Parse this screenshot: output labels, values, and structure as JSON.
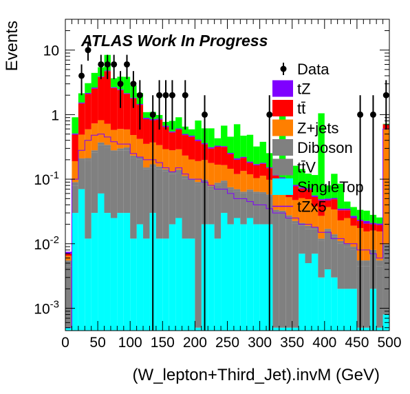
{
  "chart_data": {
    "type": "bar",
    "stacked": true,
    "yscale": "log",
    "title": "ATLAS Work In Progress",
    "xlabel": "(W_lepton+Third_Jet).invM (GeV)",
    "ylabel": "Events",
    "xlim": [
      0,
      500
    ],
    "ylim": [
      0.00045,
      30
    ],
    "grid": false,
    "legend_position": "top-right",
    "bin_width": 10,
    "xticks": [
      0,
      50,
      100,
      150,
      200,
      250,
      300,
      350,
      400,
      450,
      500
    ],
    "yticks": [
      {
        "value": 0.001,
        "base": "10",
        "exp": "-3"
      },
      {
        "value": 0.01,
        "base": "10",
        "exp": "-2"
      },
      {
        "value": 0.1,
        "base": "10",
        "exp": "-1"
      },
      {
        "value": 1,
        "base": "1",
        "exp": ""
      },
      {
        "value": 10,
        "base": "10",
        "exp": ""
      }
    ],
    "x": [
      5,
      15,
      25,
      35,
      45,
      55,
      65,
      75,
      85,
      95,
      105,
      115,
      125,
      135,
      145,
      155,
      165,
      175,
      185,
      195,
      205,
      215,
      225,
      235,
      245,
      255,
      265,
      275,
      285,
      295,
      305,
      315,
      325,
      335,
      345,
      355,
      365,
      375,
      385,
      395,
      405,
      415,
      425,
      435,
      445,
      455,
      465,
      475,
      485,
      495
    ],
    "series": [
      {
        "name": "SingleTop",
        "color": "#00ffff",
        "values": [
          0.0005,
          0.03,
          0.07,
          0.012,
          0.03,
          0.06,
          0.03,
          0.025,
          0.03,
          0.03,
          0.012,
          0.02,
          0.012,
          0.03,
          0.012,
          0.012,
          0.02,
          0.025,
          0.012,
          0.012,
          0.0005,
          0.02,
          0.02,
          0.012,
          0.03,
          0.02,
          0.025,
          0.02,
          0.025,
          0.02,
          0.02,
          0.02,
          0.0005,
          0.0005,
          0.0005,
          0.0005,
          0.007,
          0.005,
          0.007,
          0.003,
          0.004,
          0.003,
          0.002,
          0.002,
          0.002,
          0.0005,
          0.0005,
          0.002,
          0.0005,
          0.0008
        ]
      },
      {
        "name": "tt̄V",
        "color": "#808080",
        "values": [
          0.004,
          0.05,
          0.12,
          0.18,
          0.23,
          0.28,
          0.28,
          0.23,
          0.25,
          0.25,
          0.2,
          0.18,
          0.13,
          0.12,
          0.13,
          0.12,
          0.1,
          0.1,
          0.09,
          0.08,
          0.08,
          0.07,
          0.05,
          0.07,
          0.06,
          0.05,
          0.04,
          0.04,
          0.04,
          0.04,
          0.04,
          0.035,
          0.03,
          0.03,
          0.025,
          0.02,
          0.012,
          0.012,
          0.01,
          0.008,
          0.012,
          0.01,
          0.008,
          0.007,
          0.006,
          0.004,
          0.004,
          0.005,
          0.004,
          0.008
        ]
      },
      {
        "name": "Diboson",
        "color": "#808080",
        "values": [
          0.001,
          0.01,
          0.02,
          0.02,
          0.02,
          0.03,
          0.03,
          0.025,
          0.02,
          0.03,
          0.02,
          0.02,
          0.01,
          0.02,
          0.015,
          0.01,
          0.01,
          0.015,
          0.01,
          0.01,
          0.01,
          0.008,
          0.008,
          0.006,
          0.005,
          0.005,
          0.005,
          0.004,
          0.004,
          0.004,
          0.003,
          0.003,
          0.003,
          0.002,
          0.002,
          0.002,
          0.002,
          0.002,
          0.001,
          0.001,
          0.001,
          0.001,
          0.001,
          0.001,
          0.001,
          0.001,
          0.001,
          0.001,
          0.001,
          0.001
        ]
      },
      {
        "name": "Z+jets",
        "color": "#ff7f00",
        "values": [
          0.001,
          0.1,
          0.28,
          0.38,
          0.45,
          0.45,
          0.38,
          0.3,
          0.3,
          0.28,
          0.25,
          0.2,
          0.2,
          0.2,
          0.18,
          0.15,
          0.15,
          0.15,
          0.12,
          0.1,
          0.1,
          0.1,
          0.1,
          0.08,
          0.07,
          0.07,
          0.05,
          0.07,
          0.05,
          0.04,
          0.05,
          0.04,
          0.03,
          0.03,
          0.025,
          0.025,
          0.03,
          0.03,
          0.02,
          0.015,
          0.02,
          0.02,
          0.012,
          0.015,
          0.01,
          0.012,
          0.01,
          0.008,
          0.01,
          0.6
        ]
      },
      {
        "name": "tt̄",
        "color": "#ff0000",
        "values": [
          0.0005,
          0.3,
          1.0,
          1.5,
          1.8,
          3.0,
          4.0,
          2.0,
          1.8,
          1.5,
          1.3,
          1.0,
          0.5,
          0.45,
          0.5,
          0.35,
          0.25,
          0.3,
          0.25,
          0.25,
          0.2,
          0.15,
          0.12,
          0.15,
          0.15,
          0.1,
          0.08,
          0.08,
          0.06,
          0.06,
          0.06,
          0.05,
          0.05,
          0.04,
          0.03,
          0.03,
          0.02,
          0.02,
          0.015,
          0.02,
          0.01,
          0.015,
          0.01,
          0.008,
          0.006,
          0.005,
          0.005,
          0.004,
          0.004,
          0.1
        ]
      },
      {
        "name": "tZ",
        "color": "#7f00ff",
        "values": [
          0.0005,
          0.02,
          0.05,
          0.08,
          0.1,
          0.1,
          0.1,
          0.08,
          0.07,
          0.06,
          0.05,
          0.04,
          0.04,
          0.03,
          0.03,
          0.03,
          0.02,
          0.02,
          0.02,
          0.02,
          0.02,
          0.015,
          0.015,
          0.012,
          0.01,
          0.01,
          0.01,
          0.008,
          0.008,
          0.007,
          0.006,
          0.005,
          0.005,
          0.004,
          0.004,
          0.004,
          0.003,
          0.003,
          0.003,
          0.002,
          0.003,
          0.002,
          0.002,
          0.002,
          0.002,
          0.001,
          0.002,
          0.001,
          0.001,
          0.001
        ]
      },
      {
        "name": "green",
        "color": "#00ff00",
        "values": [
          0,
          0.4,
          0.6,
          0.9,
          1.8,
          1.5,
          3.6,
          1.0,
          1.4,
          1.7,
          1.0,
          0.7,
          0.2,
          0.25,
          0.12,
          0.1,
          0.25,
          0.3,
          0.15,
          0.12,
          0.4,
          0.25,
          0.3,
          0.1,
          0.35,
          0.2,
          0.5,
          0.25,
          0.3,
          0.15,
          0.2,
          0.1,
          0.08,
          0.9,
          0.1,
          0.08,
          0.07,
          0.05,
          0.06,
          1.0,
          0.03,
          0.07,
          0.05,
          0.01,
          0.01,
          0.01,
          0.01,
          0.007,
          0.005,
          0.01
        ]
      }
    ],
    "signal_tZx5": {
      "name": "tZx5",
      "color": "#7f00ff",
      "values": [
        0.0005,
        0.1,
        0.28,
        0.4,
        0.48,
        0.5,
        0.45,
        0.38,
        0.35,
        0.35,
        0.25,
        0.22,
        0.2,
        0.2,
        0.18,
        0.15,
        0.13,
        0.15,
        0.12,
        0.1,
        0.1,
        0.09,
        0.08,
        0.07,
        0.07,
        0.06,
        0.05,
        0.05,
        0.045,
        0.04,
        0.04,
        0.035,
        0.03,
        0.03,
        0.025,
        0.025,
        0.02,
        0.02,
        0.018,
        0.015,
        0.015,
        0.012,
        0.012,
        0.01,
        0.01,
        0.008,
        0.008,
        0.007,
        0.006,
        0.6
      ]
    },
    "data_points": {
      "name": "Data",
      "x": [
        25,
        35,
        55,
        65,
        75,
        85,
        95,
        105,
        115,
        135,
        145,
        155,
        165,
        185,
        215,
        315,
        455,
        475,
        495
      ],
      "y": [
        4,
        10,
        6,
        6,
        6,
        3,
        6,
        3,
        2,
        1,
        2,
        2,
        2,
        2,
        1,
        1,
        1,
        1,
        2
      ]
    },
    "legend": [
      {
        "label": "Data",
        "style": "marker",
        "color": "#000000"
      },
      {
        "label": "tZ",
        "style": "box",
        "color": "#7f00ff"
      },
      {
        "label": "tt̄",
        "style": "box",
        "color": "#ff0000"
      },
      {
        "label": "Z+jets",
        "style": "box",
        "color": "#ff7f00"
      },
      {
        "label": "Diboson",
        "style": "box",
        "color": "#808080"
      },
      {
        "label": "tt̄V",
        "style": "box",
        "color": "#808080"
      },
      {
        "label": "SingleTop",
        "style": "box",
        "color": "#00ffff"
      },
      {
        "label": "tZx5",
        "style": "line",
        "color": "#7f00ff"
      }
    ]
  }
}
